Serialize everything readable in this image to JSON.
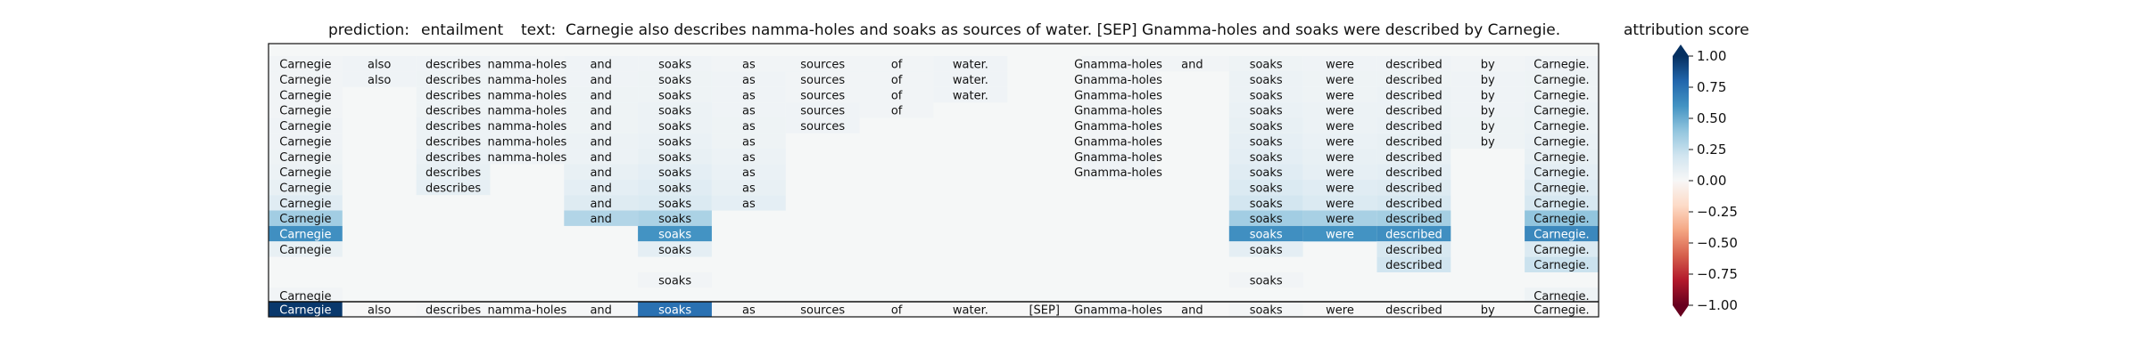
{
  "header": {
    "prediction_label": "prediction:",
    "prediction_value": "entailment",
    "text_label": "text:",
    "text_value": "Carnegie also describes namma-holes and soaks as sources of water. [SEP] Gnamma-holes and soaks were described by Carnegie."
  },
  "colorbar": {
    "title": "attribution score",
    "ticks": [
      "1.00",
      "0.75",
      "0.50",
      "0.25",
      "0.00",
      "−0.25",
      "−0.50",
      "−0.75",
      "−1.00"
    ],
    "tick_values": [
      1.0,
      0.75,
      0.5,
      0.25,
      0.0,
      -0.25,
      -0.5,
      -0.75,
      -1.0
    ],
    "colormap": "RdBu",
    "range": [
      -1.0,
      1.0
    ]
  },
  "chart_data": {
    "type": "heatmap",
    "tokens": [
      "Carnegie",
      "also",
      "describes",
      "namma-holes",
      "and",
      "soaks",
      "as",
      "sources",
      "of",
      "water.",
      "[SEP]",
      "Gnamma-holes",
      "and",
      "soaks",
      "were",
      "described",
      "by",
      "Carnegie."
    ],
    "rows": [
      [
        0.03,
        0.04,
        0.04,
        0.03,
        0.04,
        0.04,
        0.03,
        0.03,
        0.03,
        0.04,
        null,
        0.03,
        0.03,
        0.05,
        0.04,
        0.04,
        0.03,
        0.04
      ],
      [
        0.03,
        0.04,
        0.05,
        0.03,
        0.04,
        0.05,
        0.04,
        0.03,
        0.03,
        0.04,
        null,
        0.03,
        null,
        0.06,
        0.05,
        0.05,
        0.04,
        0.05
      ],
      [
        0.03,
        null,
        0.05,
        0.03,
        0.05,
        0.05,
        0.04,
        0.03,
        0.03,
        0.04,
        null,
        0.03,
        null,
        0.06,
        0.05,
        0.06,
        0.04,
        0.05
      ],
      [
        0.03,
        null,
        0.05,
        0.03,
        0.05,
        0.06,
        0.04,
        0.04,
        0.03,
        null,
        null,
        0.03,
        null,
        0.07,
        0.06,
        0.06,
        0.04,
        0.06
      ],
      [
        0.04,
        null,
        0.06,
        0.04,
        0.05,
        0.06,
        0.05,
        0.04,
        null,
        null,
        null,
        0.03,
        null,
        0.08,
        0.06,
        0.07,
        0.05,
        0.06
      ],
      [
        0.04,
        null,
        0.06,
        0.04,
        0.06,
        0.07,
        0.05,
        null,
        null,
        null,
        null,
        0.03,
        null,
        0.09,
        0.07,
        0.08,
        0.05,
        0.07
      ],
      [
        0.05,
        null,
        0.07,
        0.04,
        0.06,
        0.08,
        0.06,
        null,
        null,
        null,
        null,
        0.04,
        null,
        0.1,
        0.08,
        0.08,
        null,
        0.08
      ],
      [
        0.06,
        null,
        0.08,
        null,
        0.08,
        0.1,
        0.07,
        null,
        null,
        null,
        null,
        0.04,
        null,
        0.12,
        0.09,
        0.1,
        null,
        0.1
      ],
      [
        0.08,
        null,
        0.09,
        null,
        0.1,
        0.12,
        0.08,
        null,
        null,
        null,
        null,
        null,
        null,
        0.15,
        0.12,
        0.13,
        null,
        0.13
      ],
      [
        0.12,
        null,
        null,
        null,
        0.13,
        0.15,
        0.1,
        null,
        null,
        null,
        null,
        null,
        null,
        0.19,
        0.15,
        0.17,
        null,
        0.17
      ],
      [
        0.35,
        null,
        null,
        null,
        0.3,
        0.32,
        null,
        null,
        null,
        null,
        null,
        null,
        null,
        0.35,
        0.33,
        0.34,
        null,
        0.4
      ],
      [
        0.62,
        null,
        null,
        null,
        null,
        0.6,
        null,
        null,
        null,
        null,
        null,
        null,
        null,
        0.62,
        0.6,
        0.62,
        null,
        0.65
      ],
      [
        0.08,
        null,
        null,
        null,
        null,
        0.1,
        null,
        null,
        null,
        null,
        null,
        null,
        null,
        0.1,
        null,
        0.17,
        null,
        0.15
      ],
      [
        null,
        null,
        null,
        null,
        null,
        null,
        null,
        null,
        null,
        null,
        null,
        null,
        null,
        null,
        null,
        0.2,
        null,
        0.22
      ],
      [
        null,
        null,
        null,
        null,
        null,
        0.03,
        null,
        null,
        null,
        null,
        null,
        null,
        null,
        0.03,
        null,
        null,
        null,
        null
      ],
      [
        0.03,
        null,
        null,
        null,
        null,
        null,
        null,
        null,
        null,
        null,
        null,
        null,
        null,
        null,
        null,
        null,
        null,
        0.05
      ]
    ],
    "attribution_row": [
      0.97,
      0.0,
      0.01,
      0.0,
      0.01,
      0.75,
      0.0,
      0.0,
      0.0,
      0.0,
      0.0,
      0.01,
      0.0,
      0.02,
      0.0,
      0.0,
      0.0,
      0.0
    ]
  }
}
